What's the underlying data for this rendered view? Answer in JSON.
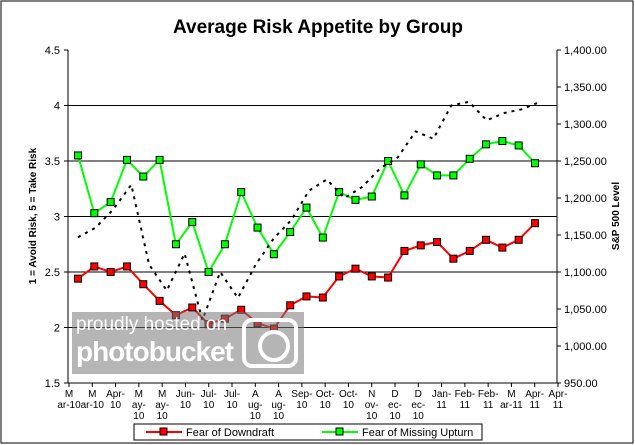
{
  "chart_data": {
    "type": "line",
    "title": "Average Risk Appetite by Group",
    "ylabel": "1 = Avoid Risk, 5 = Take Risk",
    "y2label": "S&P 500 Level",
    "ylim": [
      1.5,
      4.5
    ],
    "yticks": [
      "1.5",
      "2",
      "2.5",
      "3",
      "3.5",
      "4",
      "4.5"
    ],
    "y2lim": [
      950,
      1400
    ],
    "y2ticks": [
      "950.00",
      "1,000.00",
      "1,050.00",
      "1,100.00",
      "1,150.00",
      "1,200.00",
      "1,250.00",
      "1,300.00",
      "1,350.00",
      "1,400.00"
    ],
    "xticklabels": [
      "M\nar-10",
      "M\nar-10",
      "Apr-\n10",
      "M\nay-\n10",
      "M\nay-\n10",
      "Jun-\n10",
      "Jul-\n10",
      "Jul-\n10",
      "A\nug-\n10",
      "A\nug-\n10",
      "Sep-\n10",
      "Oct-\n10",
      "Oct-\n10",
      "N\nov-\n10",
      "D\nec-\n10",
      "D\nec-\n10",
      "Jan-\n11",
      "Feb-\n11",
      "Feb-\n11",
      "M\nar-11",
      "Apr-\n11",
      "Apr-\n11"
    ],
    "grid": "horizontal",
    "legend": "bottom",
    "series": [
      {
        "name": "Fear of Downdraft",
        "color": "#ff0000",
        "axis": "left",
        "values": [
          2.44,
          2.55,
          2.5,
          2.55,
          2.39,
          2.24,
          2.11,
          2.18,
          2.03,
          2.08,
          2.16,
          2.04,
          1.99,
          2.2,
          2.28,
          2.27,
          2.46,
          2.53,
          2.46,
          2.45,
          2.69,
          2.74,
          2.77,
          2.62,
          2.69,
          2.79,
          2.72,
          2.79,
          2.94
        ]
      },
      {
        "name": "Fear of Missing Upturn",
        "color": "#00ff00",
        "axis": "left",
        "values": [
          3.55,
          3.03,
          3.13,
          3.51,
          3.36,
          3.51,
          2.75,
          2.95,
          2.5,
          2.75,
          3.22,
          2.9,
          2.66,
          2.86,
          3.08,
          2.81,
          3.22,
          3.15,
          3.18,
          3.5,
          3.19,
          3.47,
          3.37,
          3.37,
          3.52,
          3.65,
          3.68,
          3.64,
          3.48
        ]
      },
      {
        "color": "#000000",
        "axis": "right",
        "style": "dotted",
        "values": [
          1147,
          1160,
          1185,
          1218,
          1110,
          1075,
          1125,
          1035,
          1100,
          1065,
          1110,
          1145,
          1170,
          1210,
          1225,
          1200,
          1215,
          1240,
          1255,
          1290,
          1280,
          1325,
          1330,
          1305,
          1315,
          1320,
          1330
        ]
      }
    ]
  },
  "watermark": {
    "line1": "proudly hosted on",
    "line2": "photobucket"
  }
}
